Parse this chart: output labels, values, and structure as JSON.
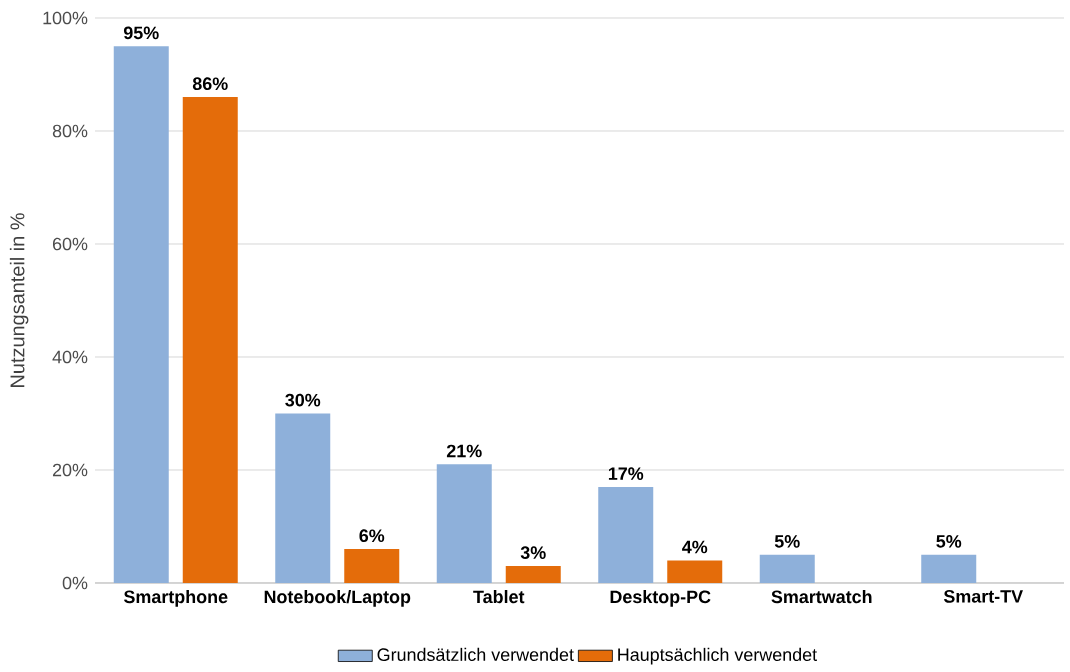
{
  "chart_data": {
    "type": "bar",
    "ylabel": "Nutzungsanteil in %",
    "categories": [
      "Smartphone",
      "Notebook/Laptop",
      "Tablet",
      "Desktop-PC",
      "Smartwatch",
      "Smart-TV"
    ],
    "series": [
      {
        "name": "Grundsätzlich verwendet",
        "color": "#8eb0da",
        "values": [
          95,
          30,
          21,
          17,
          5,
          5
        ],
        "value_labels": [
          "95%",
          "30%",
          "21%",
          "17%",
          "5%",
          "5%"
        ]
      },
      {
        "name": "Hauptsächlich verwendet",
        "color": "#e46c0a",
        "values": [
          86,
          6,
          3,
          4,
          null,
          null
        ],
        "value_labels": [
          "86%",
          "6%",
          "3%",
          "4%",
          null,
          null
        ]
      }
    ],
    "ylim": [
      0,
      100
    ],
    "yticks": [
      {
        "value": 0,
        "label": "0%"
      },
      {
        "value": 20,
        "label": "20%"
      },
      {
        "value": 40,
        "label": "40%"
      },
      {
        "value": 60,
        "label": "60%"
      },
      {
        "value": 80,
        "label": "80%"
      },
      {
        "value": 100,
        "label": "100%"
      }
    ],
    "grid": "y",
    "legend": "bottom"
  }
}
